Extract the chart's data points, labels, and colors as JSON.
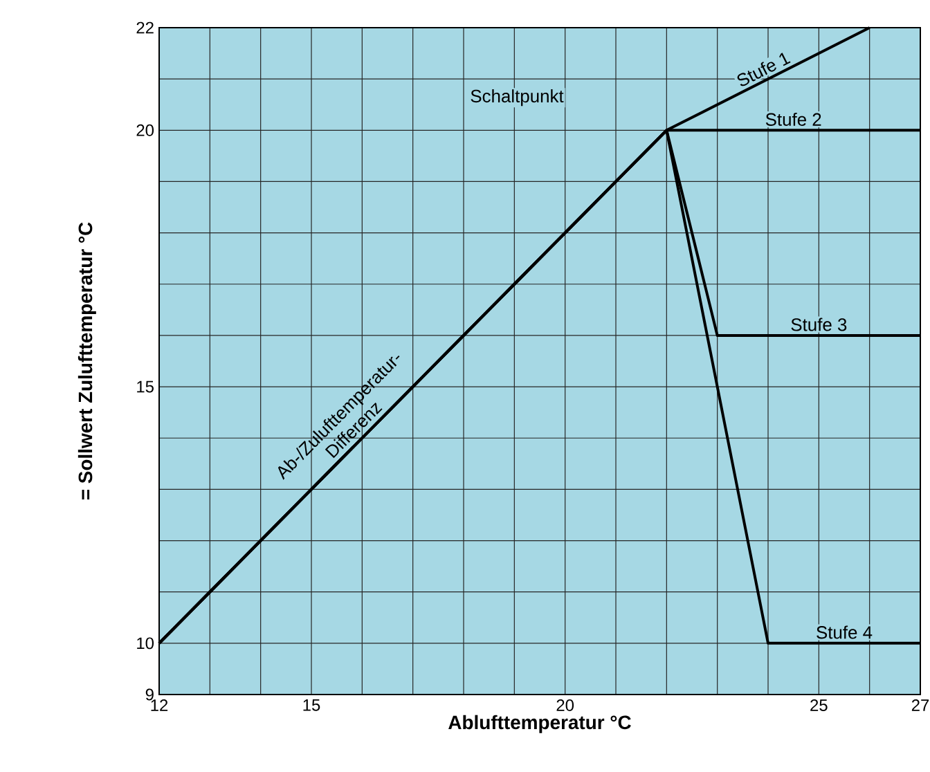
{
  "chart_data": {
    "type": "line",
    "xlabel": "Ablufttemperatur °C",
    "ylabel": "= Sollwert Zulufttemperatur °C",
    "xlim": [
      12,
      27
    ],
    "ylim": [
      9,
      22
    ],
    "xticks": [
      12,
      15,
      20,
      25,
      27
    ],
    "yticks": [
      9,
      10,
      15,
      20,
      22
    ],
    "grid": true,
    "series": [
      {
        "name": "Stufe 1",
        "x": [
          12,
          22,
          26
        ],
        "values": [
          10,
          20,
          22
        ],
        "color": "#000000"
      },
      {
        "name": "Stufe 2",
        "x": [
          12,
          22,
          27
        ],
        "values": [
          10,
          20,
          20
        ],
        "color": "#000000"
      },
      {
        "name": "Stufe 3",
        "x": [
          12,
          22,
          23,
          27
        ],
        "values": [
          10,
          20,
          16,
          16
        ],
        "color": "#000000"
      },
      {
        "name": "Stufe 4",
        "x": [
          12,
          22,
          24,
          27
        ],
        "values": [
          10,
          20,
          10,
          10
        ],
        "color": "#000000"
      }
    ],
    "annotations": [
      "Schaltpunkt",
      {
        "text": "Ab-/Zulufttemperatur-Differenz",
        "x": 16,
        "y": 14
      }
    ]
  }
}
